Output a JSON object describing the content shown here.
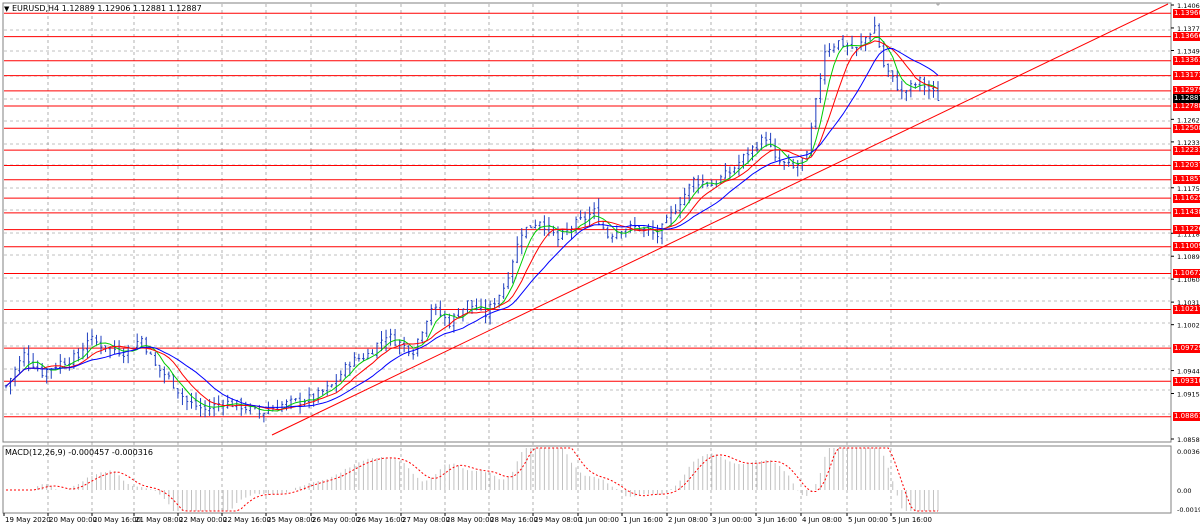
{
  "header": {
    "symbol_timeframe": "EURUSD,H4",
    "ohlc": "1.12889 1.12906 1.12881 1.12887"
  },
  "macd": {
    "label": "MACD(12,26,9) -0.000457 -0.000316",
    "price_labels": [
      "0.003685",
      "0.00",
      "-0.00198"
    ]
  },
  "price_axis": {
    "labels": [
      "1.14065",
      "1.13775",
      "1.13490",
      "1.12620",
      "1.12335",
      "1.11755",
      "1.11180",
      "1.10890",
      "1.10600",
      "1.10310",
      "1.10025",
      "1.09445",
      "1.09155",
      "1.08580"
    ]
  },
  "levels": [
    "1.13960",
    "1.13666",
    "1.13361",
    "1.13173",
    "1.12979",
    "1.12788",
    "1.12508",
    "1.12231",
    "1.12037",
    "1.11857",
    "1.11625",
    "1.11438",
    "1.11226",
    "1.11009",
    "1.10672",
    "1.10217",
    "1.09729",
    "1.09310",
    "1.08861"
  ],
  "current_price": "1.12887",
  "time_axis": [
    "19 May 2020",
    "20 May 00:00",
    "20 May 16:00",
    "21 May 08:00",
    "22 May 00:00",
    "22 May 16:00",
    "25 May 08:00",
    "26 May 00:00",
    "26 May 16:00",
    "27 May 08:00",
    "28 May 00:00",
    "28 May 16:00",
    "29 May 08:00",
    "1 Jun 00:00",
    "1 Jun 16:00",
    "2 Jun 08:00",
    "3 Jun 00:00",
    "3 Jun 16:00",
    "4 Jun 08:00",
    "5 Jun 00:00",
    "5 Jun 16:00"
  ],
  "colors": {
    "candles": "#1f3fbf",
    "level": "#ff0000",
    "grid": "#808080",
    "ma_fast": "#00cc00",
    "ma_mid": "#ff0000",
    "ma_slow": "#0000ff",
    "macd_hist": "#c0c0c0",
    "macd_signal": "#ff0000"
  }
}
